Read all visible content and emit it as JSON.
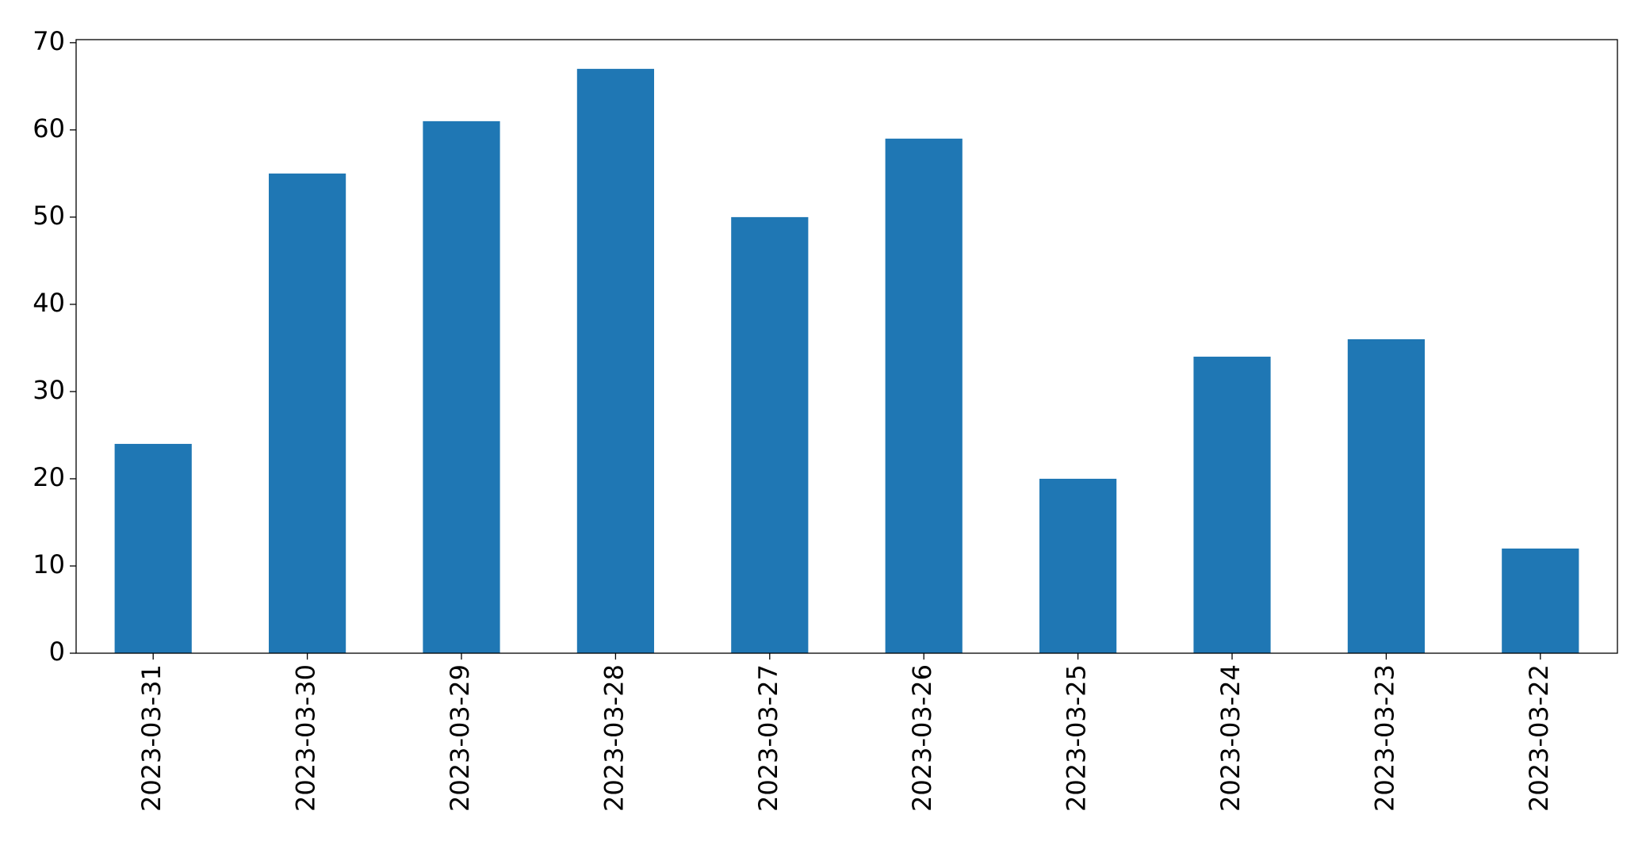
{
  "chart_data": {
    "type": "bar",
    "categories": [
      "2023-03-31",
      "2023-03-30",
      "2023-03-29",
      "2023-03-28",
      "2023-03-27",
      "2023-03-26",
      "2023-03-25",
      "2023-03-24",
      "2023-03-23",
      "2023-03-22"
    ],
    "values": [
      24,
      55,
      61,
      67,
      50,
      59,
      20,
      34,
      36,
      12
    ],
    "color": "#1f77b4",
    "ylim": [
      0,
      70.35
    ],
    "yticks": [
      0,
      10,
      20,
      30,
      40,
      50,
      60,
      70
    ],
    "grid": false
  }
}
